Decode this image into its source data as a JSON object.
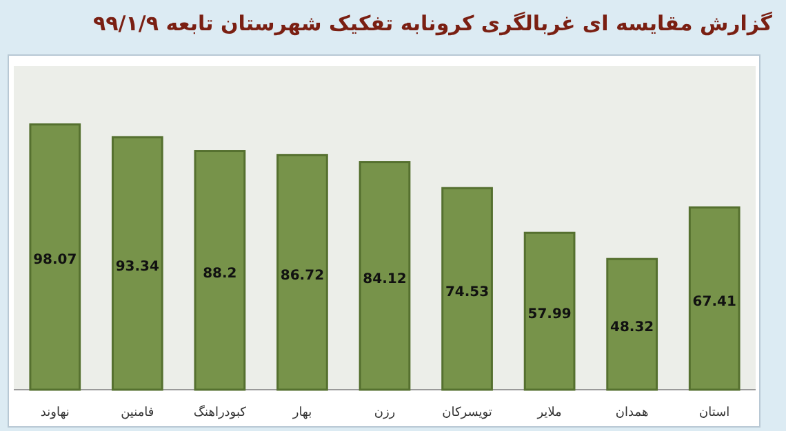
{
  "chart_data": {
    "type": "bar",
    "title": "گزارش مقایسه ای غربالگری کرونابه تفکیک شهرستان تابعه ۹۹/۱/۹",
    "categories": [
      "نهاوند",
      "فامنین",
      "کبودراهنگ",
      "بهار",
      "رزن",
      "تویسرکان",
      "ملایر",
      "همدان",
      "استان"
    ],
    "values": [
      98.07,
      93.34,
      88.2,
      86.72,
      84.12,
      74.53,
      57.99,
      48.32,
      67.41
    ],
    "color": "#77934a",
    "data_labels": true
  }
}
